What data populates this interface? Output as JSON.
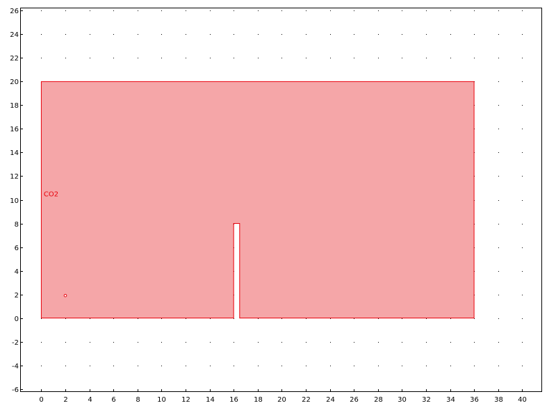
{
  "chart_data": {
    "type": "geometry",
    "xlim": [
      -1.7,
      41.6
    ],
    "ylim": [
      -6.2,
      26.2
    ],
    "x_ticks": [
      0,
      2,
      4,
      6,
      8,
      10,
      12,
      14,
      16,
      18,
      20,
      22,
      24,
      26,
      28,
      30,
      32,
      34,
      36,
      38,
      40
    ],
    "y_ticks": [
      -6,
      -4,
      -2,
      0,
      2,
      4,
      6,
      8,
      10,
      12,
      14,
      16,
      18,
      20,
      22,
      24,
      26
    ],
    "grid": "dots",
    "geometry": {
      "label": "CO2",
      "polygon": [
        [
          0,
          0
        ],
        [
          16,
          0
        ],
        [
          16,
          8
        ],
        [
          16.5,
          8
        ],
        [
          16.5,
          0
        ],
        [
          36,
          0
        ],
        [
          36,
          20
        ],
        [
          0,
          20
        ]
      ],
      "point": [
        2,
        1.9
      ],
      "label_anchor": [
        0.2,
        10.3
      ]
    },
    "colors": {
      "fill": "#f5a6a8",
      "stroke": "#e8000b",
      "axis": "#000000"
    }
  }
}
